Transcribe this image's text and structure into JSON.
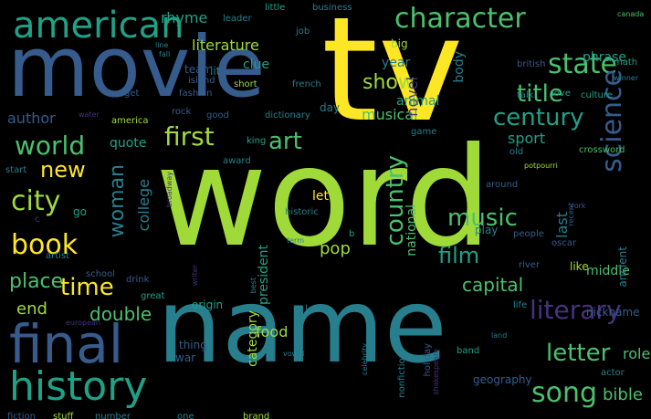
{
  "colors": {
    "background": "#000000",
    "palette": [
      "#fde725",
      "#a0da39",
      "#4ac16d",
      "#1fa187",
      "#277f8e",
      "#365c8d",
      "#46327e",
      "#440154"
    ]
  },
  "words": [
    {
      "text": "word"
    },
    {
      "text": "name"
    },
    {
      "text": "tv"
    },
    {
      "text": "movie"
    },
    {
      "text": "final"
    },
    {
      "text": "history"
    },
    {
      "text": "american"
    },
    {
      "text": "character"
    },
    {
      "text": "state"
    },
    {
      "text": "title"
    },
    {
      "text": "century"
    },
    {
      "text": "science"
    },
    {
      "text": "world"
    },
    {
      "text": "first"
    },
    {
      "text": "art"
    },
    {
      "text": "new"
    },
    {
      "text": "city"
    },
    {
      "text": "book"
    },
    {
      "text": "time"
    },
    {
      "text": "place"
    },
    {
      "text": "end"
    },
    {
      "text": "double"
    },
    {
      "text": "woman"
    },
    {
      "text": "college"
    },
    {
      "text": "country"
    },
    {
      "text": "music"
    },
    {
      "text": "film"
    },
    {
      "text": "capital"
    },
    {
      "text": "literary"
    },
    {
      "text": "letter"
    },
    {
      "text": "song"
    },
    {
      "text": "bible"
    },
    {
      "text": "show"
    },
    {
      "text": "musical"
    },
    {
      "text": "novel"
    },
    {
      "text": "animal"
    },
    {
      "text": "body"
    },
    {
      "text": "year"
    },
    {
      "text": "sport"
    },
    {
      "text": "author"
    },
    {
      "text": "quote"
    },
    {
      "text": "rhyme"
    },
    {
      "text": "literature"
    },
    {
      "text": "clue"
    },
    {
      "text": "lit"
    },
    {
      "text": "team"
    },
    {
      "text": "island"
    },
    {
      "text": "fashion"
    },
    {
      "text": "america"
    },
    {
      "text": "rock"
    },
    {
      "text": "good"
    },
    {
      "text": "dictionary"
    },
    {
      "text": "king"
    },
    {
      "text": "let"
    },
    {
      "text": "pop"
    },
    {
      "text": "national"
    },
    {
      "text": "president"
    },
    {
      "text": "category"
    },
    {
      "text": "food"
    },
    {
      "text": "thing"
    },
    {
      "text": "war"
    },
    {
      "text": "role"
    },
    {
      "text": "nickname"
    },
    {
      "text": "last"
    },
    {
      "text": "middle"
    },
    {
      "text": "like"
    },
    {
      "text": "ancient"
    },
    {
      "text": "people"
    },
    {
      "text": "river"
    },
    {
      "text": "phrase"
    },
    {
      "text": "british"
    },
    {
      "text": "math"
    },
    {
      "text": "culture"
    },
    {
      "text": "love"
    },
    {
      "text": "talk"
    },
    {
      "text": "old"
    },
    {
      "text": "go"
    },
    {
      "text": "term"
    },
    {
      "text": "geography"
    },
    {
      "text": "celebrity"
    },
    {
      "text": "holiday"
    },
    {
      "text": "game"
    },
    {
      "text": "french"
    },
    {
      "text": "short"
    },
    {
      "text": "little"
    },
    {
      "text": "business"
    },
    {
      "text": "big"
    },
    {
      "text": "leader"
    },
    {
      "text": "job"
    },
    {
      "text": "day"
    },
    {
      "text": "crossword"
    },
    {
      "text": "potpourri"
    },
    {
      "text": "award"
    },
    {
      "text": "start"
    },
    {
      "text": "water"
    },
    {
      "text": "get"
    },
    {
      "text": "fiction"
    },
    {
      "text": "stuff"
    },
    {
      "text": "number"
    },
    {
      "text": "one"
    },
    {
      "text": "brand"
    },
    {
      "text": "land"
    },
    {
      "text": "band"
    },
    {
      "text": "actor"
    },
    {
      "text": "life"
    },
    {
      "text": "york"
    },
    {
      "text": "oscar"
    },
    {
      "text": "around"
    },
    {
      "text": "winner"
    },
    {
      "text": "school"
    },
    {
      "text": "drink"
    },
    {
      "text": "artist"
    },
    {
      "text": "great"
    },
    {
      "text": "origin"
    },
    {
      "text": "european"
    },
    {
      "text": "vowel"
    },
    {
      "text": "recent"
    },
    {
      "text": "historic"
    },
    {
      "text": "play"
    },
    {
      "text": "b"
    },
    {
      "text": "c"
    },
    {
      "text": "nonfiction"
    },
    {
      "text": "shakespeare"
    },
    {
      "text": "broadway"
    },
    {
      "text": "line"
    },
    {
      "text": "fall"
    },
    {
      "text": "l"
    },
    {
      "text": "writer"
    },
    {
      "text": "best"
    },
    {
      "text": "canada"
    }
  ]
}
